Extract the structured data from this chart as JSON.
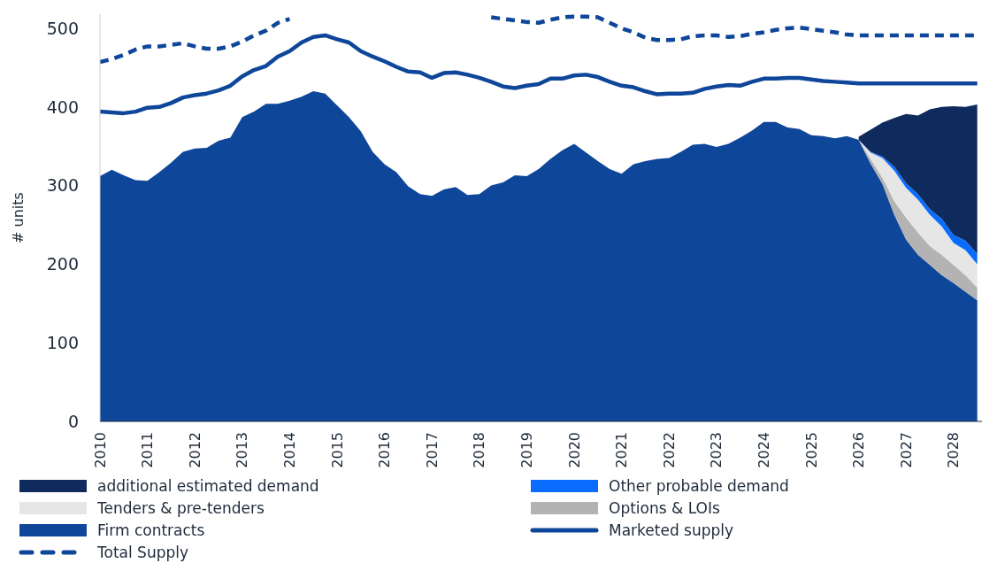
{
  "chart_data": {
    "type": "area",
    "ylabel": "# units",
    "stacked": true,
    "legend": "bottom",
    "marker": "none",
    "xlim": [
      2010,
      2028.6
    ],
    "ylim": [
      0,
      518
    ],
    "xticks": [
      2010,
      2011,
      2012,
      2013,
      2014,
      2015,
      2016,
      2017,
      2018,
      2019,
      2020,
      2021,
      2022,
      2023,
      2024,
      2025,
      2026,
      2027,
      2028
    ],
    "yticks": [
      0,
      100,
      200,
      300,
      400,
      500
    ],
    "x": [
      2010,
      2010.25,
      2010.5,
      2010.75,
      2011,
      2011.25,
      2011.5,
      2011.75,
      2012,
      2012.25,
      2012.5,
      2012.75,
      2013,
      2013.25,
      2013.5,
      2013.75,
      2014,
      2014.25,
      2014.5,
      2014.75,
      2015,
      2015.25,
      2015.5,
      2015.75,
      2016,
      2016.25,
      2016.5,
      2016.75,
      2017,
      2017.25,
      2017.5,
      2017.75,
      2018,
      2018.25,
      2018.5,
      2018.75,
      2019,
      2019.25,
      2019.5,
      2019.75,
      2020,
      2020.25,
      2020.5,
      2020.75,
      2021,
      2021.25,
      2021.5,
      2021.75,
      2022,
      2022.25,
      2022.5,
      2022.75,
      2023,
      2023.25,
      2023.5,
      2023.75,
      2024,
      2024.25,
      2024.5,
      2024.75,
      2025,
      2025.25,
      2025.5,
      2025.75,
      2026,
      2026.25,
      2026.5,
      2026.75,
      2027,
      2027.25,
      2027.5,
      2027.75,
      2028,
      2028.25,
      2028.5
    ],
    "series": [
      {
        "name": "Firm contracts",
        "color": "#0e4699",
        "values": [
          312,
          320,
          313,
          307,
          306,
          317,
          329,
          343,
          347,
          348,
          357,
          361,
          387,
          394,
          404,
          404,
          408,
          413,
          420,
          417,
          402,
          387,
          369,
          343,
          327,
          317,
          299,
          289,
          287,
          295,
          298,
          288,
          289,
          300,
          304,
          313,
          312,
          321,
          334,
          345,
          353,
          342,
          331,
          321,
          315,
          327,
          331,
          334,
          335,
          343,
          352,
          353,
          349,
          353,
          361,
          370,
          381,
          381,
          374,
          372,
          364,
          363,
          360,
          363,
          358,
          328,
          302,
          263,
          231,
          212,
          199,
          186,
          176,
          165,
          154
        ]
      },
      {
        "name": "Options & LOIs",
        "color": "#b3b3b3",
        "values": [
          null,
          null,
          null,
          null,
          null,
          null,
          null,
          null,
          null,
          null,
          null,
          null,
          null,
          null,
          null,
          null,
          null,
          null,
          null,
          null,
          null,
          null,
          null,
          null,
          null,
          null,
          null,
          null,
          null,
          null,
          null,
          null,
          null,
          null,
          null,
          null,
          null,
          null,
          null,
          null,
          null,
          null,
          null,
          null,
          null,
          null,
          null,
          null,
          null,
          null,
          null,
          null,
          null,
          null,
          null,
          null,
          null,
          null,
          null,
          null,
          null,
          null,
          null,
          null,
          0,
          6,
          8,
          17,
          28,
          28,
          24,
          26,
          23,
          21,
          16
        ]
      },
      {
        "name": "Tenders & pre-tenders",
        "color": "#e6e6e6",
        "values": [
          null,
          null,
          null,
          null,
          null,
          null,
          null,
          null,
          null,
          null,
          null,
          null,
          null,
          null,
          null,
          null,
          null,
          null,
          null,
          null,
          null,
          null,
          null,
          null,
          null,
          null,
          null,
          null,
          null,
          null,
          null,
          null,
          null,
          null,
          null,
          null,
          null,
          null,
          null,
          null,
          null,
          null,
          null,
          null,
          null,
          null,
          null,
          null,
          null,
          null,
          null,
          null,
          null,
          null,
          null,
          null,
          null,
          null,
          null,
          null,
          null,
          null,
          null,
          null,
          0,
          8,
          25,
          39,
          38,
          42,
          40,
          36,
          28,
          32,
          30
        ]
      },
      {
        "name": "Other probable demand",
        "color": "#0a6cff",
        "values": [
          null,
          null,
          null,
          null,
          null,
          null,
          null,
          null,
          null,
          null,
          null,
          null,
          null,
          null,
          null,
          null,
          null,
          null,
          null,
          null,
          null,
          null,
          null,
          null,
          null,
          null,
          null,
          null,
          null,
          null,
          null,
          null,
          null,
          null,
          null,
          null,
          null,
          null,
          null,
          null,
          null,
          null,
          null,
          null,
          null,
          null,
          null,
          null,
          null,
          null,
          null,
          null,
          null,
          null,
          null,
          null,
          null,
          null,
          null,
          null,
          null,
          null,
          null,
          null,
          0,
          1,
          2,
          5,
          6,
          7,
          7,
          10,
          10,
          12,
          13
        ]
      },
      {
        "name": "additional estimated demand",
        "color": "#0f2a5c",
        "values": [
          null,
          null,
          null,
          null,
          null,
          null,
          null,
          null,
          null,
          null,
          null,
          null,
          null,
          null,
          null,
          null,
          null,
          null,
          null,
          null,
          null,
          null,
          null,
          null,
          null,
          null,
          null,
          null,
          null,
          null,
          null,
          null,
          null,
          null,
          null,
          null,
          null,
          null,
          null,
          null,
          null,
          null,
          null,
          null,
          null,
          null,
          null,
          null,
          null,
          null,
          null,
          null,
          null,
          null,
          null,
          null,
          null,
          null,
          null,
          null,
          null,
          null,
          null,
          null,
          4,
          28,
          43,
          62,
          88,
          100,
          127,
          142,
          164,
          170,
          190
        ]
      },
      {
        "name": "Marketed supply",
        "type": "line",
        "line_style": "solid",
        "color": "#0e4699",
        "values": [
          394,
          393,
          392,
          394,
          399,
          400,
          405,
          412,
          415,
          417,
          421,
          427,
          439,
          447,
          452,
          464,
          471,
          482,
          489,
          491,
          486,
          482,
          471,
          464,
          458,
          451,
          445,
          444,
          437,
          443,
          444,
          441,
          437,
          432,
          426,
          424,
          427,
          429,
          436,
          436,
          440,
          441,
          438,
          432,
          427,
          425,
          420,
          416,
          417,
          417,
          418,
          423,
          426,
          428,
          427,
          432,
          436,
          436,
          437,
          437,
          435,
          433,
          432,
          431,
          430,
          430,
          430,
          430,
          430,
          430,
          430,
          430,
          430,
          430,
          430
        ]
      },
      {
        "name": "Total Supply",
        "type": "line",
        "line_style": "dashed",
        "color": "#0e4699",
        "values": [
          457,
          461,
          466,
          473,
          477,
          477,
          479,
          481,
          477,
          474,
          474,
          477,
          483,
          491,
          497,
          507,
          512,
          null,
          null,
          null,
          null,
          null,
          null,
          null,
          null,
          null,
          null,
          null,
          null,
          null,
          null,
          null,
          null,
          514,
          512,
          510,
          508,
          507,
          511,
          514,
          515,
          515,
          514,
          507,
          500,
          495,
          488,
          485,
          485,
          486,
          490,
          491,
          491,
          489,
          490,
          493,
          495,
          498,
          500,
          501,
          499,
          497,
          495,
          492,
          491,
          491,
          491,
          491,
          491,
          491,
          491,
          491,
          491,
          491,
          491
        ]
      }
    ]
  }
}
